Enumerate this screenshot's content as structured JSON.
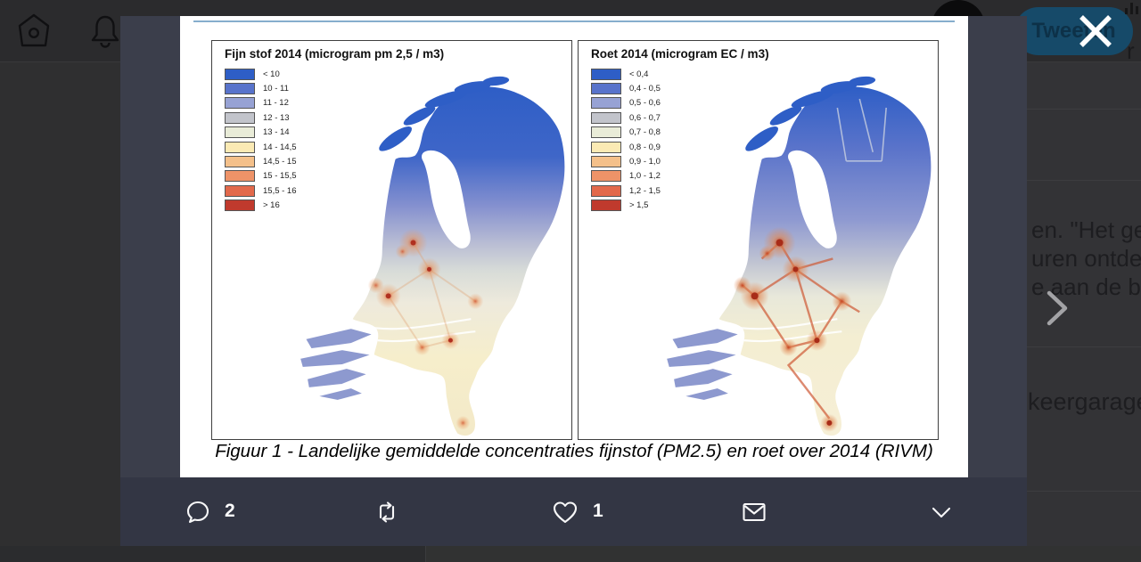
{
  "navbar": {
    "tweet_button_label": "Tweeten",
    "text_fragment": "r"
  },
  "background_page": {
    "tweet_text_lines": [
      "en. \"Het gebo",
      "uren ontdekt.",
      "e aan de bel t"
    ],
    "reply_fragment": "keergarage"
  },
  "figure": {
    "caption": "Figuur 1 - Landelijke gemiddelde concentraties fijnstof (PM2.5) en roet over 2014 (RIVM)",
    "maps": [
      {
        "title": "Fijn stof 2014 (microgram pm 2,5 / m3)",
        "legend": [
          {
            "label": "< 10",
            "color": "#2e5ec6"
          },
          {
            "label": "10 - 11",
            "color": "#5873cb"
          },
          {
            "label": "11 - 12",
            "color": "#97a2d4"
          },
          {
            "label": "12 - 13",
            "color": "#c2c4cb"
          },
          {
            "label": "13 - 14",
            "color": "#e9ecd8"
          },
          {
            "label": "14 - 14,5",
            "color": "#fbeab4"
          },
          {
            "label": "14,5 - 15",
            "color": "#f4c08a"
          },
          {
            "label": "15 - 15,5",
            "color": "#ee9368"
          },
          {
            "label": "15,5 - 16",
            "color": "#e2694b"
          },
          {
            "label": "> 16",
            "color": "#c03a2d"
          }
        ]
      },
      {
        "title": "Roet 2014 (microgram EC / m3)",
        "legend": [
          {
            "label": "< 0,4",
            "color": "#2e5ec6"
          },
          {
            "label": "0,4 - 0,5",
            "color": "#5873cb"
          },
          {
            "label": "0,5 - 0,6",
            "color": "#97a2d4"
          },
          {
            "label": "0,6 - 0,7",
            "color": "#c2c4cb"
          },
          {
            "label": "0,7 - 0,8",
            "color": "#e9ecd8"
          },
          {
            "label": "0,8 - 0,9",
            "color": "#fbeab4"
          },
          {
            "label": "0,9 - 1,0",
            "color": "#f4c08a"
          },
          {
            "label": "1,0 - 1,2",
            "color": "#ee9368"
          },
          {
            "label": "1,2 - 1,5",
            "color": "#e2694b"
          },
          {
            "label": "> 1,5",
            "color": "#c03a2d"
          }
        ]
      }
    ]
  },
  "action_bar": {
    "reply_count": "2",
    "like_count": "1"
  },
  "colors": {
    "accent_blue": "#1b95e0",
    "figure_rule_blue": "#86aecd",
    "overlay_dark": "#2f2f30"
  }
}
